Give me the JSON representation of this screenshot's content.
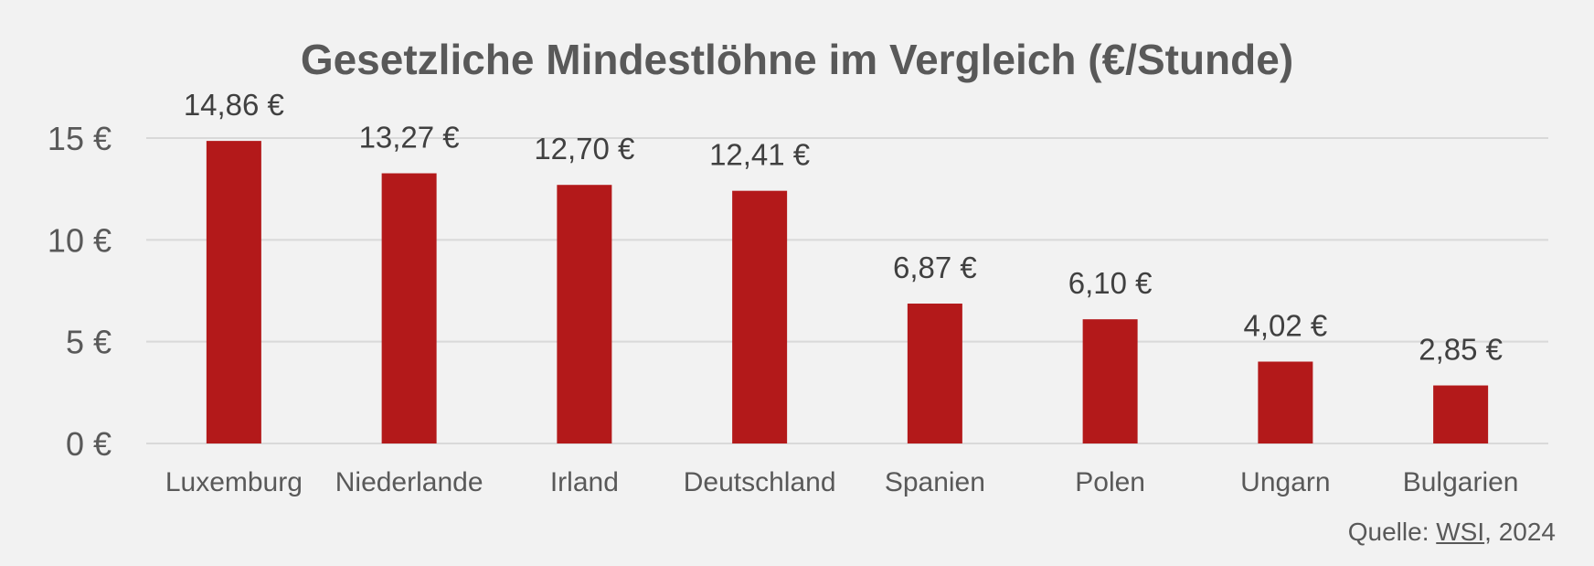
{
  "chart_data": {
    "type": "bar",
    "title": "Gesetzliche Mindestlöhne im Vergleich (€/Stunde)",
    "categories": [
      "Luxemburg",
      "Niederlande",
      "Irland",
      "Deutschland",
      "Spanien",
      "Polen",
      "Ungarn",
      "Bulgarien"
    ],
    "values": [
      14.86,
      13.27,
      12.7,
      12.41,
      6.87,
      6.1,
      4.02,
      2.85
    ],
    "value_labels": [
      "14,86 €",
      "13,27 €",
      "12,70 €",
      "12,41 €",
      "6,87 €",
      "6,10 €",
      "4,02 €",
      "2,85 €"
    ],
    "y_ticks": [
      {
        "value": 0,
        "label": "0 €"
      },
      {
        "value": 5,
        "label": "5 €"
      },
      {
        "value": 10,
        "label": "10 €"
      },
      {
        "value": 15,
        "label": "15 €"
      }
    ],
    "ylim": [
      0,
      15
    ],
    "grid": true,
    "bar_color": "#b3191a",
    "grid_color": "#d9d9d9",
    "text_color": "#595959"
  },
  "source": {
    "prefix": "Quelle: ",
    "link": "WSI",
    "suffix": ", 2024"
  }
}
